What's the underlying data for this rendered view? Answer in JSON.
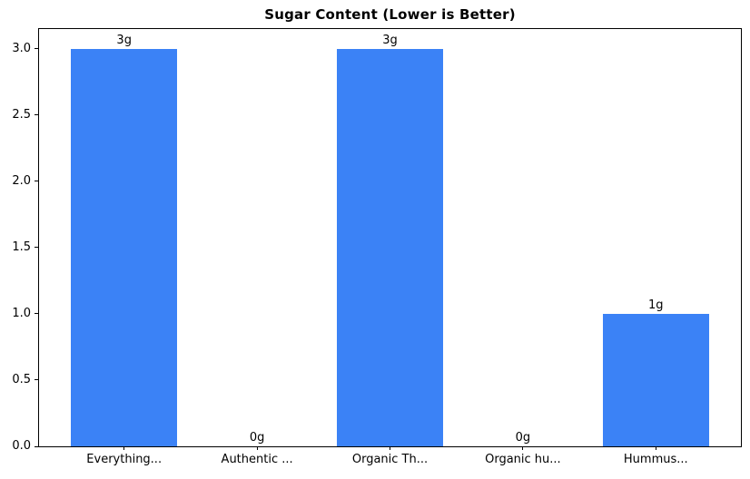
{
  "figure": {
    "background": "#ffffff",
    "frame_color": "#000000",
    "text_color": "#000000"
  },
  "chart_data": {
    "type": "bar",
    "title": "Sugar Content (Lower is Better)",
    "categories": [
      "Everything...",
      "Authentic ...",
      "Organic Th...",
      "Organic hu...",
      "Hummus..."
    ],
    "values": [
      3,
      0,
      3,
      0,
      1
    ],
    "bar_labels": [
      "3g",
      "0g",
      "3g",
      "0g",
      "1g"
    ],
    "xlabel": "",
    "ylabel": "",
    "ylim": [
      0,
      3.15
    ],
    "xlim": [
      -0.64,
      4.64
    ],
    "yticks": [
      "0.0",
      "0.5",
      "1.0",
      "1.5",
      "2.0",
      "2.5",
      "3.0"
    ],
    "bar_width_units": 0.8,
    "bar_color": "#3b82f6",
    "grid": false,
    "legend": "none"
  }
}
